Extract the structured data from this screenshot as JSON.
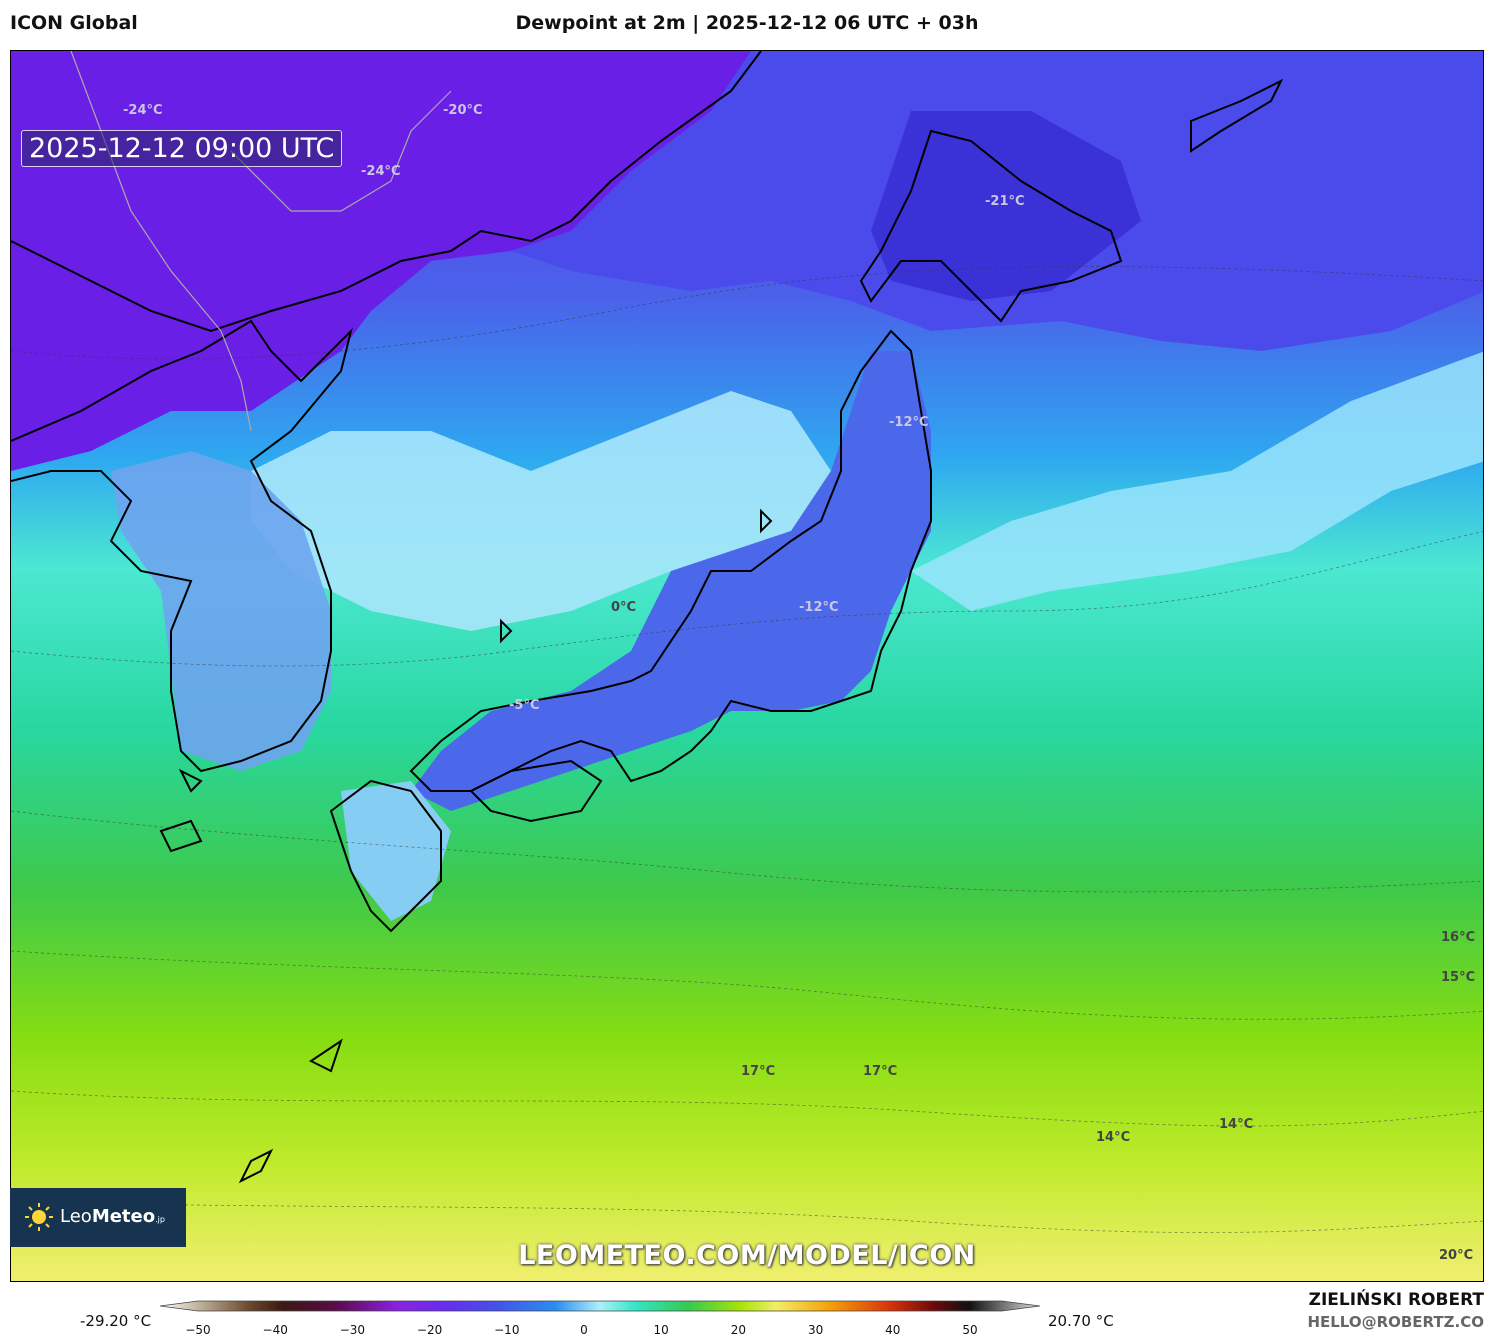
{
  "header": {
    "model": "ICON Global",
    "title": "Dewpoint at 2m | 2025-12-12 06 UTC + 03h"
  },
  "map": {
    "valid_time": "2025-12-12 09:00 UTC",
    "contour_labels": [
      {
        "text": "-24°C",
        "style": "light"
      },
      {
        "text": "-20°C",
        "style": "light"
      },
      {
        "text": "-24°C",
        "style": "light"
      },
      {
        "text": "-21°C",
        "style": "light"
      },
      {
        "text": "-12°C",
        "style": "light"
      },
      {
        "text": "0°C",
        "style": "dark"
      },
      {
        "text": "-12°C",
        "style": "light"
      },
      {
        "text": "-5°C",
        "style": "light"
      },
      {
        "text": "16°C",
        "style": "dark"
      },
      {
        "text": "15°C",
        "style": "dark"
      },
      {
        "text": "17°C",
        "style": "dark"
      },
      {
        "text": "17°C",
        "style": "dark"
      },
      {
        "text": "14°C",
        "style": "dark"
      },
      {
        "text": "14°C",
        "style": "dark"
      },
      {
        "text": "20°C",
        "style": "dark"
      }
    ],
    "colors": {
      "cold": "#6a1fe6",
      "mid_blue": "#3a6ae8",
      "light_blue": "#a8e6fb",
      "cyan": "#35e6c8",
      "green": "#3fd35a",
      "lime": "#8fe010",
      "yellow": "#f0ee6a"
    }
  },
  "logo": {
    "name_light": "Leo",
    "name_bold": "Meteo",
    "suffix": ".jp",
    "icon": "sun-icon"
  },
  "watermark_url": "LEOMETEO.COM/MODEL/ICON",
  "colorbar": {
    "min_label": "-29.20 °C",
    "max_label": "20.70 °C",
    "ticks": [
      "−50",
      "−40",
      "−30",
      "−20",
      "−10",
      "0",
      "10",
      "20",
      "30",
      "40",
      "50"
    ],
    "range": [
      -50,
      50
    ]
  },
  "credits": {
    "author": "ZIELIŃSKI ROBERT",
    "email": "HELLO@ROBERTZ.CO"
  }
}
